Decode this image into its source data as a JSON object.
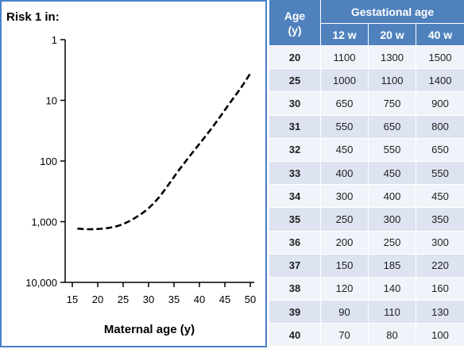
{
  "chart_data": {
    "type": "line",
    "y_axis_title": "Risk 1 in:",
    "xlabel": "Maternal age (y)",
    "x_ticks": [
      15,
      20,
      25,
      30,
      35,
      40,
      45,
      50
    ],
    "y_ticks": [
      1,
      10,
      100,
      1000,
      10000
    ],
    "y_tick_labels": [
      "1",
      "10",
      "100",
      "1,000",
      "10,000"
    ],
    "y_scale": "log",
    "y_inverted": true,
    "xlim": [
      15,
      50
    ],
    "ylim": [
      1,
      10000
    ],
    "series": [
      {
        "line_style": "dashed",
        "color": "#000000",
        "x": [
          16,
          18,
          20,
          22,
          24,
          26,
          28,
          30,
          32,
          34,
          36,
          38,
          40,
          42,
          44,
          46,
          48,
          50
        ],
        "y": [
          1300,
          1330,
          1320,
          1270,
          1170,
          1000,
          800,
          600,
          400,
          240,
          140,
          85,
          52,
          32,
          19,
          11,
          6.5,
          3.6
        ]
      }
    ]
  },
  "table": {
    "age_header": "Age (y)",
    "group_header": "Gestational age",
    "columns": [
      "12 w",
      "20 w",
      "40 w"
    ],
    "rows": [
      {
        "age": "20",
        "values": [
          "1100",
          "1300",
          "1500"
        ]
      },
      {
        "age": "25",
        "values": [
          "1000",
          "1100",
          "1400"
        ]
      },
      {
        "age": "30",
        "values": [
          "650",
          "750",
          "900"
        ]
      },
      {
        "age": "31",
        "values": [
          "550",
          "650",
          "800"
        ]
      },
      {
        "age": "32",
        "values": [
          "450",
          "550",
          "650"
        ]
      },
      {
        "age": "33",
        "values": [
          "400",
          "450",
          "550"
        ]
      },
      {
        "age": "34",
        "values": [
          "300",
          "400",
          "450"
        ]
      },
      {
        "age": "35",
        "values": [
          "250",
          "300",
          "350"
        ]
      },
      {
        "age": "36",
        "values": [
          "200",
          "250",
          "300"
        ]
      },
      {
        "age": "37",
        "values": [
          "150",
          "185",
          "220"
        ]
      },
      {
        "age": "38",
        "values": [
          "120",
          "140",
          "160"
        ]
      },
      {
        "age": "39",
        "values": [
          "90",
          "110",
          "130"
        ]
      },
      {
        "age": "40",
        "values": [
          "70",
          "80",
          "100"
        ]
      }
    ]
  },
  "colors": {
    "header_blue": "#4f81bd",
    "row_shade_a": "#dde3f1",
    "row_shade_b": "#f0f3f9",
    "panel_border": "#4a80c8"
  }
}
